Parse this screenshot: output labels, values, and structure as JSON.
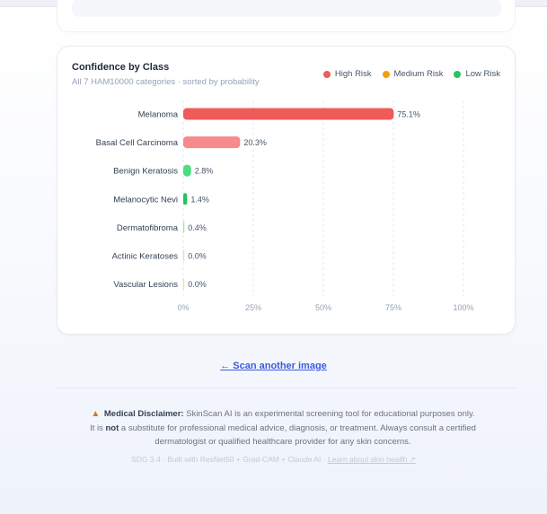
{
  "card": {
    "title": "Confidence by Class",
    "subtitle": "All 7 HAM10000 categories · sorted by probability"
  },
  "legend": [
    {
      "label": "High Risk",
      "color": "#ef5a5a"
    },
    {
      "label": "Medium Risk",
      "color": "#f59e0b"
    },
    {
      "label": "Low Risk",
      "color": "#22c55e"
    }
  ],
  "chart_data": {
    "type": "bar",
    "orientation": "horizontal",
    "categories": [
      "Melanoma",
      "Basal Cell Carcinoma",
      "Benign Keratosis",
      "Melanocytic Nevi",
      "Dermatofibroma",
      "Actinic Keratoses",
      "Vascular Lesions"
    ],
    "values": [
      75.1,
      20.3,
      2.8,
      1.4,
      0.4,
      0.0,
      0.0
    ],
    "value_labels": [
      "75.1%",
      "20.3%",
      "2.8%",
      "1.4%",
      "0.4%",
      "0.0%",
      "0.0%"
    ],
    "bar_colors": [
      "#ef5a5a",
      "#f78a8a",
      "#4ade80",
      "#22c55e",
      "#86efac",
      "#fcd9a8",
      "#fcd9a8"
    ],
    "xlim": [
      0,
      100
    ],
    "x_ticks": [
      "0%",
      "25%",
      "50%",
      "75%",
      "100%"
    ],
    "grid": true
  },
  "scan_link": "← Scan another image",
  "disclaimer": {
    "label": "Medical Disclaimer:",
    "text_1": " SkinScan AI is an experimental screening tool for educational purposes only. It is ",
    "emphasis": "not",
    "text_2": " a substitute for professional medical advice, diagnosis, or treatment. Always consult a certified dermatologist or qualified healthcare provider for any skin concerns."
  },
  "footer": {
    "text": "SDG 3.4 · Built with ResNet50 + Grad-CAM + Claude AI · ",
    "link": "Learn about skin health ↗"
  }
}
